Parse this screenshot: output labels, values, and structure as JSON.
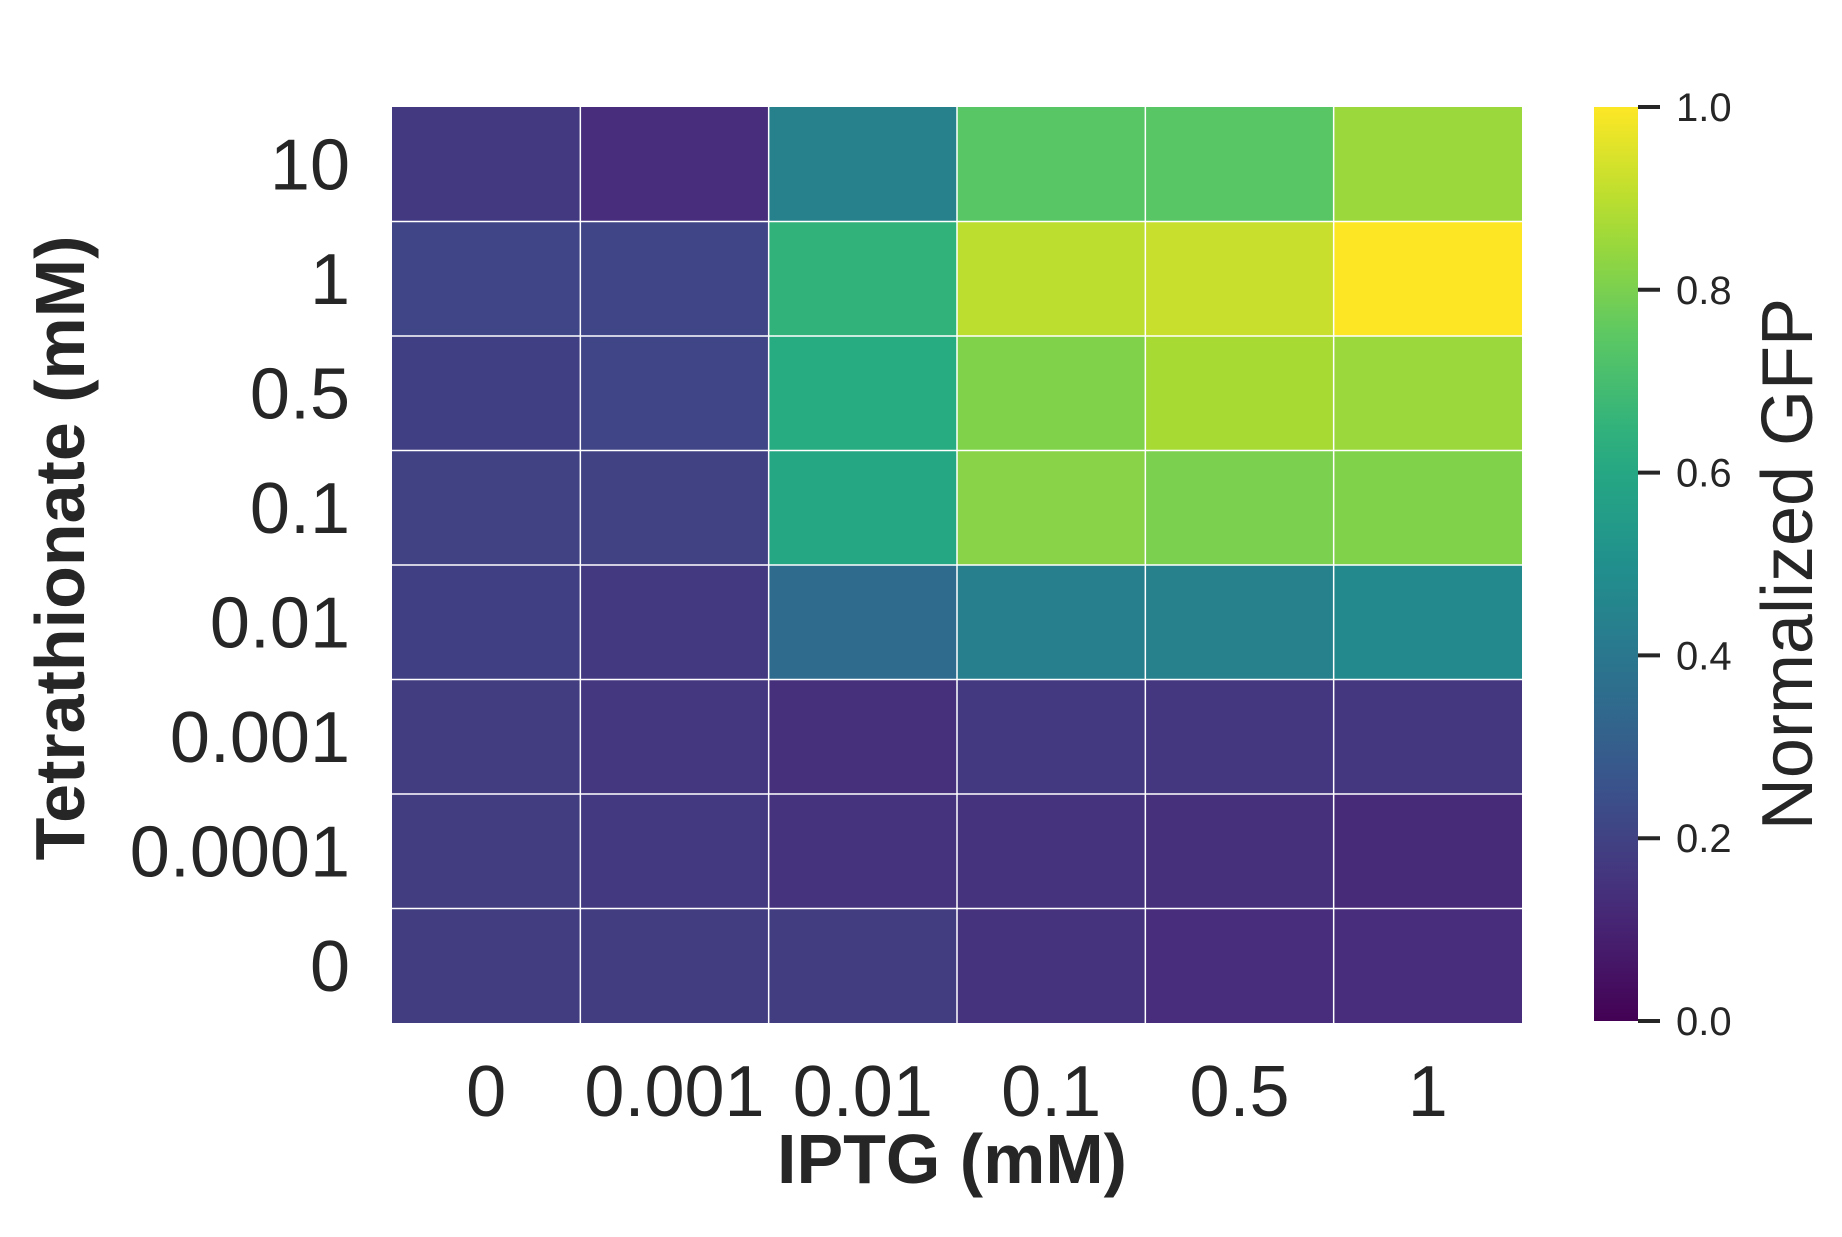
{
  "chart_data": {
    "type": "heatmap",
    "xlabel": "IPTG (mM)",
    "ylabel": "Tetrathionate (mM)",
    "x_categories": [
      "0",
      "0.001",
      "0.01",
      "0.1",
      "0.5",
      "1"
    ],
    "y_categories": [
      "10",
      "1",
      "0.5",
      "0.1",
      "0.01",
      "0.001",
      "0.0001",
      "0"
    ],
    "values": [
      [
        0.17,
        0.13,
        0.44,
        0.74,
        0.74,
        0.85
      ],
      [
        0.21,
        0.21,
        0.65,
        0.9,
        0.92,
        1.0
      ],
      [
        0.19,
        0.21,
        0.62,
        0.81,
        0.87,
        0.85
      ],
      [
        0.2,
        0.2,
        0.6,
        0.82,
        0.8,
        0.81
      ],
      [
        0.19,
        0.17,
        0.35,
        0.43,
        0.44,
        0.47
      ],
      [
        0.18,
        0.16,
        0.14,
        0.17,
        0.16,
        0.16
      ],
      [
        0.18,
        0.17,
        0.15,
        0.15,
        0.14,
        0.12
      ],
      [
        0.18,
        0.18,
        0.18,
        0.15,
        0.13,
        0.13
      ]
    ],
    "colormap": "viridis",
    "vmin": 0.0,
    "vmax": 1.0,
    "colorbar": {
      "label": "Normalized GFP",
      "ticks": [
        "0.0",
        "0.2",
        "0.4",
        "0.6",
        "0.8",
        "1.0"
      ],
      "tick_values": [
        0.0,
        0.2,
        0.4,
        0.6,
        0.8,
        1.0
      ]
    },
    "grid_line_color": "#ffffff",
    "text_color": "#262626"
  }
}
